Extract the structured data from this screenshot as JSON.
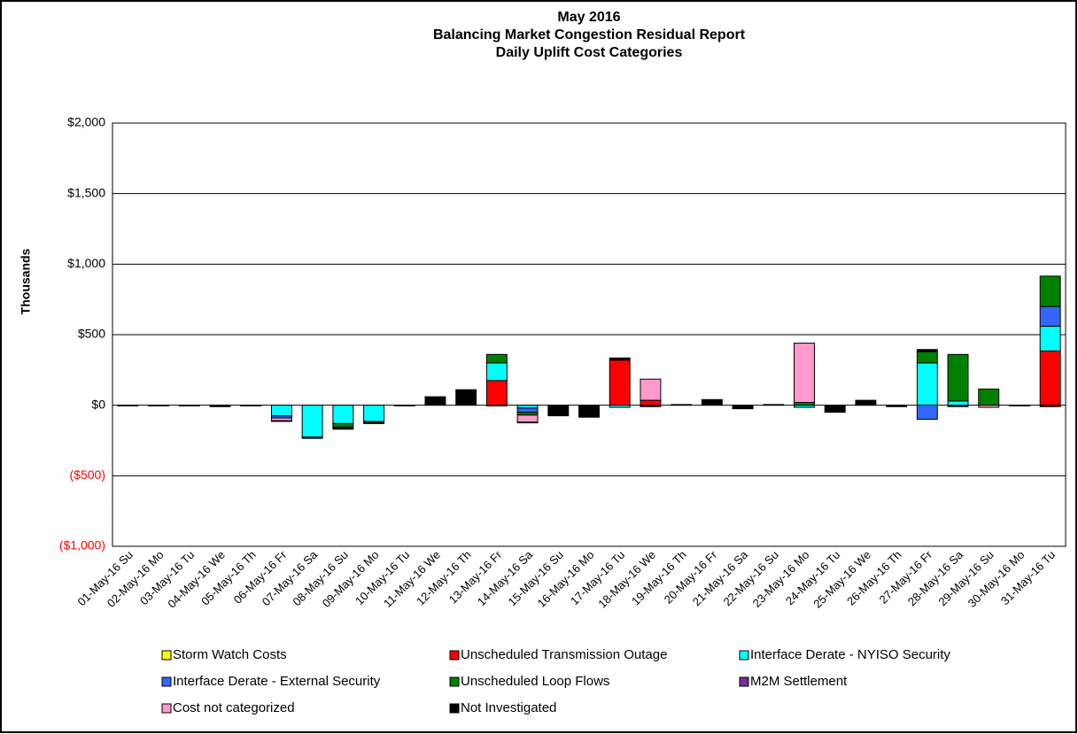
{
  "chart_data": {
    "type": "stacked_bar",
    "title": [
      "May 2016",
      "Balancing Market Congestion Residual Report",
      "Daily Uplift Cost Categories"
    ],
    "y_label": "Thousands",
    "categories": [
      "01-May-16 Su",
      "02-May-16 Mo",
      "03-May-16 Tu",
      "04-May-16 We",
      "05-May-16 Th",
      "06-May-16 Fr",
      "07-May-16 Sa",
      "08-May-16 Su",
      "09-May-16 Mo",
      "10-May-16 Tu",
      "11-May-16 We",
      "12-May-16 Th",
      "13-May-16 Fr",
      "14-May-16 Sa",
      "15-May-16 Su",
      "16-May-16 Mo",
      "17-May-16 Tu",
      "18-May-16 We",
      "19-May-16 Th",
      "20-May-16 Fr",
      "21-May-16 Sa",
      "22-May-16 Su",
      "23-May-16 Mo",
      "24-May-16 Tu",
      "25-May-16 We",
      "26-May-16 Th",
      "27-May-16 Fr",
      "28-May-16 Sa",
      "29-May-16 Su",
      "30-May-16 Mo",
      "31-May-16 Tu"
    ],
    "series": [
      {
        "name": "Storm Watch Costs",
        "color": "#ffff00",
        "values": [
          0,
          0,
          0,
          0,
          0,
          0,
          0,
          0,
          0,
          0,
          0,
          0,
          0,
          0,
          0,
          0,
          0,
          0,
          0,
          0,
          0,
          0,
          0,
          0,
          0,
          0,
          0,
          0,
          0,
          0,
          0
        ]
      },
      {
        "name": "Unscheduled Transmission Outage",
        "color": "#ff0000",
        "values": [
          0,
          0,
          0,
          0,
          0,
          0,
          0,
          0,
          0,
          0,
          0,
          0,
          175,
          0,
          0,
          0,
          320,
          35,
          0,
          0,
          0,
          0,
          0,
          0,
          0,
          0,
          0,
          0,
          0,
          0,
          385
        ]
      },
      {
        "name": "Interface Derate - NYISO Security",
        "color": "#00ffff",
        "values": [
          0,
          0,
          0,
          0,
          0,
          -75,
          -225,
          -130,
          -115,
          0,
          0,
          0,
          125,
          -20,
          0,
          0,
          -15,
          0,
          0,
          0,
          0,
          0,
          -15,
          0,
          0,
          0,
          300,
          30,
          0,
          0,
          175
        ]
      },
      {
        "name": "Interface Derate - External Security",
        "color": "#3366ff",
        "values": [
          0,
          0,
          0,
          0,
          0,
          -15,
          0,
          0,
          0,
          0,
          0,
          0,
          0,
          -30,
          0,
          0,
          0,
          0,
          0,
          0,
          0,
          0,
          0,
          0,
          0,
          0,
          -100,
          0,
          0,
          0,
          140
        ]
      },
      {
        "name": "Unscheduled Loop Flows",
        "color": "#008000",
        "values": [
          0,
          0,
          0,
          0,
          0,
          0,
          0,
          -25,
          0,
          0,
          0,
          0,
          60,
          -20,
          0,
          0,
          0,
          0,
          0,
          0,
          0,
          0,
          20,
          0,
          0,
          0,
          80,
          330,
          115,
          0,
          215
        ]
      },
      {
        "name": "M2M Settlement",
        "color": "#7030a0",
        "values": [
          0,
          0,
          0,
          0,
          0,
          0,
          0,
          0,
          0,
          0,
          0,
          0,
          0,
          0,
          0,
          0,
          0,
          0,
          0,
          0,
          0,
          0,
          0,
          0,
          0,
          0,
          0,
          0,
          0,
          0,
          0
        ]
      },
      {
        "name": "Cost not categorized",
        "color": "#ff99cc",
        "values": [
          0,
          0,
          0,
          0,
          0,
          -20,
          0,
          0,
          0,
          0,
          0,
          0,
          0,
          -50,
          0,
          0,
          0,
          150,
          0,
          0,
          0,
          0,
          420,
          0,
          0,
          0,
          0,
          0,
          -15,
          0,
          0
        ]
      },
      {
        "name": "Not Investigated",
        "color": "#000000",
        "values": [
          -5,
          -5,
          -5,
          -10,
          -5,
          -5,
          -10,
          -15,
          -15,
          -5,
          60,
          110,
          -5,
          -5,
          -75,
          -85,
          15,
          -10,
          5,
          40,
          -25,
          5,
          0,
          -50,
          35,
          -10,
          15,
          -10,
          0,
          -5,
          -10
        ]
      }
    ],
    "ylim": [
      -1000,
      2000
    ],
    "yticks": [
      {
        "value": -1000,
        "label": "($1,000)"
      },
      {
        "value": -500,
        "label": "($500)"
      },
      {
        "value": 0,
        "label": "$0"
      },
      {
        "value": 500,
        "label": "$500"
      },
      {
        "value": 1000,
        "label": "$1,000"
      },
      {
        "value": 1500,
        "label": "$1,500"
      },
      {
        "value": 2000,
        "label": "$2,000"
      }
    ],
    "grid": true
  }
}
